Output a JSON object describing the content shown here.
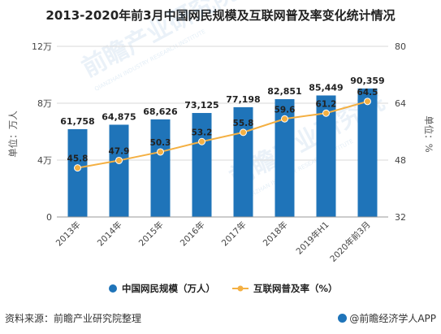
{
  "title": "2013-2020年前3月中国网民规模及互联网普及率变化统计情况",
  "watermark": {
    "brand": "前瞻产业研究院",
    "sub": "QIANZHAN INDUSTRY RESEARCH INSTITUTE"
  },
  "footer": {
    "source": "资料来源：前瞻产业研究院整理",
    "brand": "@前瞻经济学人APP"
  },
  "colors": {
    "bar": "#1f74b9",
    "line": "#f4b043",
    "grid": "#d9d9d9",
    "axis": "#999999"
  },
  "chart_data": {
    "type": "bar+line",
    "categories": [
      "2013年",
      "2014年",
      "2015年",
      "2016年",
      "2017年",
      "2018年",
      "2019年H1",
      "2020年前3月"
    ],
    "series": [
      {
        "name": "中国网民规模（万人）",
        "type": "bar",
        "axis": "left",
        "values": [
          61758,
          64875,
          68626,
          73125,
          77198,
          82851,
          85449,
          90359
        ],
        "labels": [
          "61,758",
          "64,875",
          "68,626",
          "73,125",
          "77,198",
          "82,851",
          "85,449",
          "90,359"
        ]
      },
      {
        "name": "互联网普及率（%）",
        "type": "line",
        "axis": "right",
        "values": [
          45.8,
          47.9,
          50.3,
          53.2,
          55.8,
          59.6,
          61.2,
          64.5
        ],
        "labels": [
          "45.8",
          "47.9",
          "50.3",
          "53.2",
          "55.8",
          "59.6",
          "61.2",
          "64.5"
        ]
      }
    ],
    "y_left": {
      "label": "单位：万人",
      "ylim": [
        0,
        120000
      ],
      "ticks": [
        0,
        40000,
        80000,
        120000
      ],
      "tick_labels": [
        "0",
        "4万",
        "8万",
        "12万"
      ]
    },
    "y_right": {
      "label": "单位：%",
      "ylim": [
        32,
        80
      ],
      "ticks": [
        32,
        48,
        64,
        80
      ],
      "tick_labels": [
        "32",
        "48",
        "64",
        "80"
      ]
    },
    "grid": true,
    "legend": "bottom"
  }
}
